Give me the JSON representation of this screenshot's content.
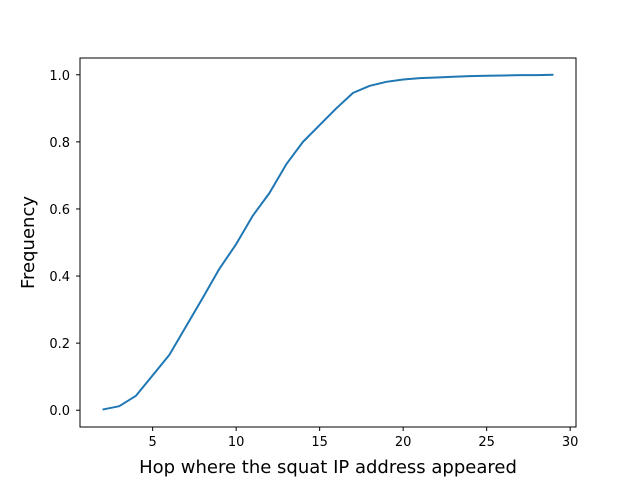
{
  "chart_data": {
    "type": "line",
    "title": "",
    "xlabel": "Hop where the squat IP address appeared",
    "ylabel": "Frequency",
    "xlim": [
      0.65,
      30.35
    ],
    "ylim": [
      -0.05,
      1.05
    ],
    "xticks": [
      5,
      10,
      15,
      20,
      25,
      30
    ],
    "xtick_labels": [
      "5",
      "10",
      "15",
      "20",
      "25",
      "30"
    ],
    "yticks": [
      0.0,
      0.2,
      0.4,
      0.6,
      0.8,
      1.0
    ],
    "ytick_labels": [
      "0.0",
      "0.2",
      "0.4",
      "0.6",
      "0.8",
      "1.0"
    ],
    "grid": false,
    "legend": "none",
    "series": [
      {
        "color": "#1f77b4",
        "x": [
          2,
          3,
          4,
          5,
          6,
          7,
          8,
          9,
          10,
          11,
          12,
          13,
          14,
          15,
          16,
          17,
          18,
          19,
          20,
          21,
          22,
          23,
          24,
          25,
          26,
          27,
          28,
          29
        ],
        "y": [
          0.002,
          0.012,
          0.043,
          0.104,
          0.165,
          0.25,
          0.335,
          0.422,
          0.495,
          0.58,
          0.648,
          0.733,
          0.8,
          0.85,
          0.9,
          0.946,
          0.967,
          0.979,
          0.986,
          0.99,
          0.992,
          0.994,
          0.996,
          0.997,
          0.998,
          0.999,
          0.999,
          1.0
        ]
      }
    ]
  }
}
